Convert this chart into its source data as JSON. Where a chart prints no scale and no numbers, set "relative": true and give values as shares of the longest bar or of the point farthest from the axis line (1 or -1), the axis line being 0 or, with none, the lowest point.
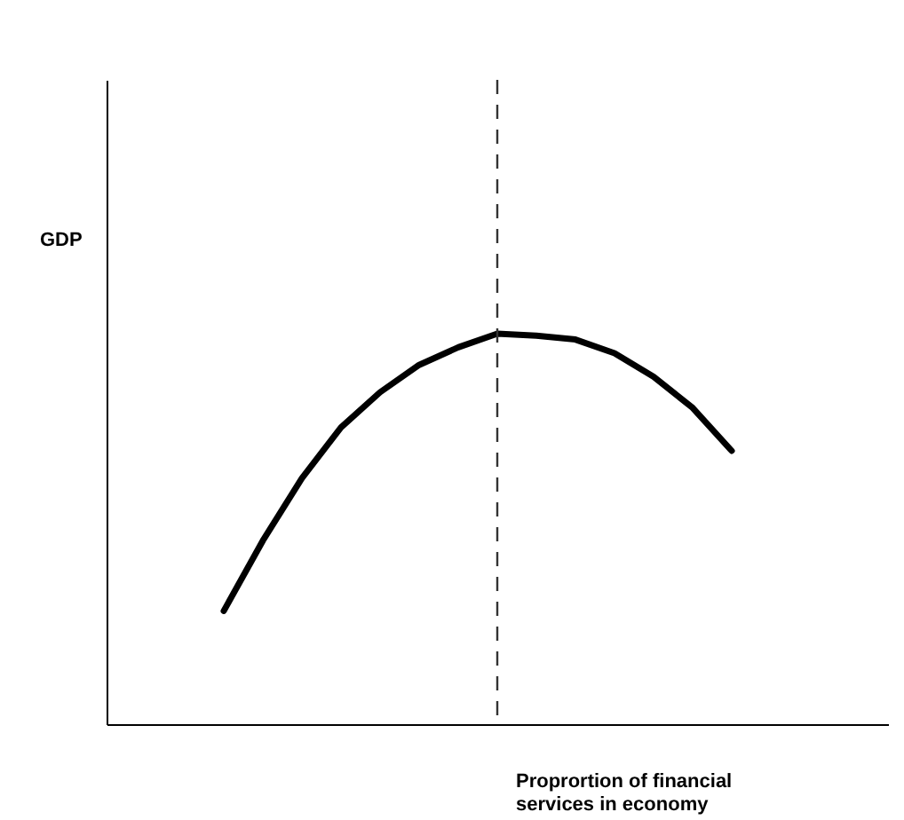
{
  "chart_data": {
    "type": "line",
    "relative": true,
    "xlabel": "Proprortion of financial services in economy",
    "ylabel": "GDP",
    "categories": [
      null,
      null,
      null,
      null,
      null,
      null,
      null,
      null,
      null,
      null,
      null,
      null,
      null,
      null,
      null,
      null,
      null,
      null,
      null,
      null,
      null
    ],
    "series": [
      {
        "color": "#000000",
        "values": [
          null,
          null,
          null,
          0.29,
          0.47,
          0.63,
          0.76,
          0.85,
          0.92,
          0.965,
          1,
          0.995,
          0.985,
          0.95,
          0.89,
          0.81,
          0.7,
          null,
          null,
          null,
          null
        ]
      }
    ]
  }
}
